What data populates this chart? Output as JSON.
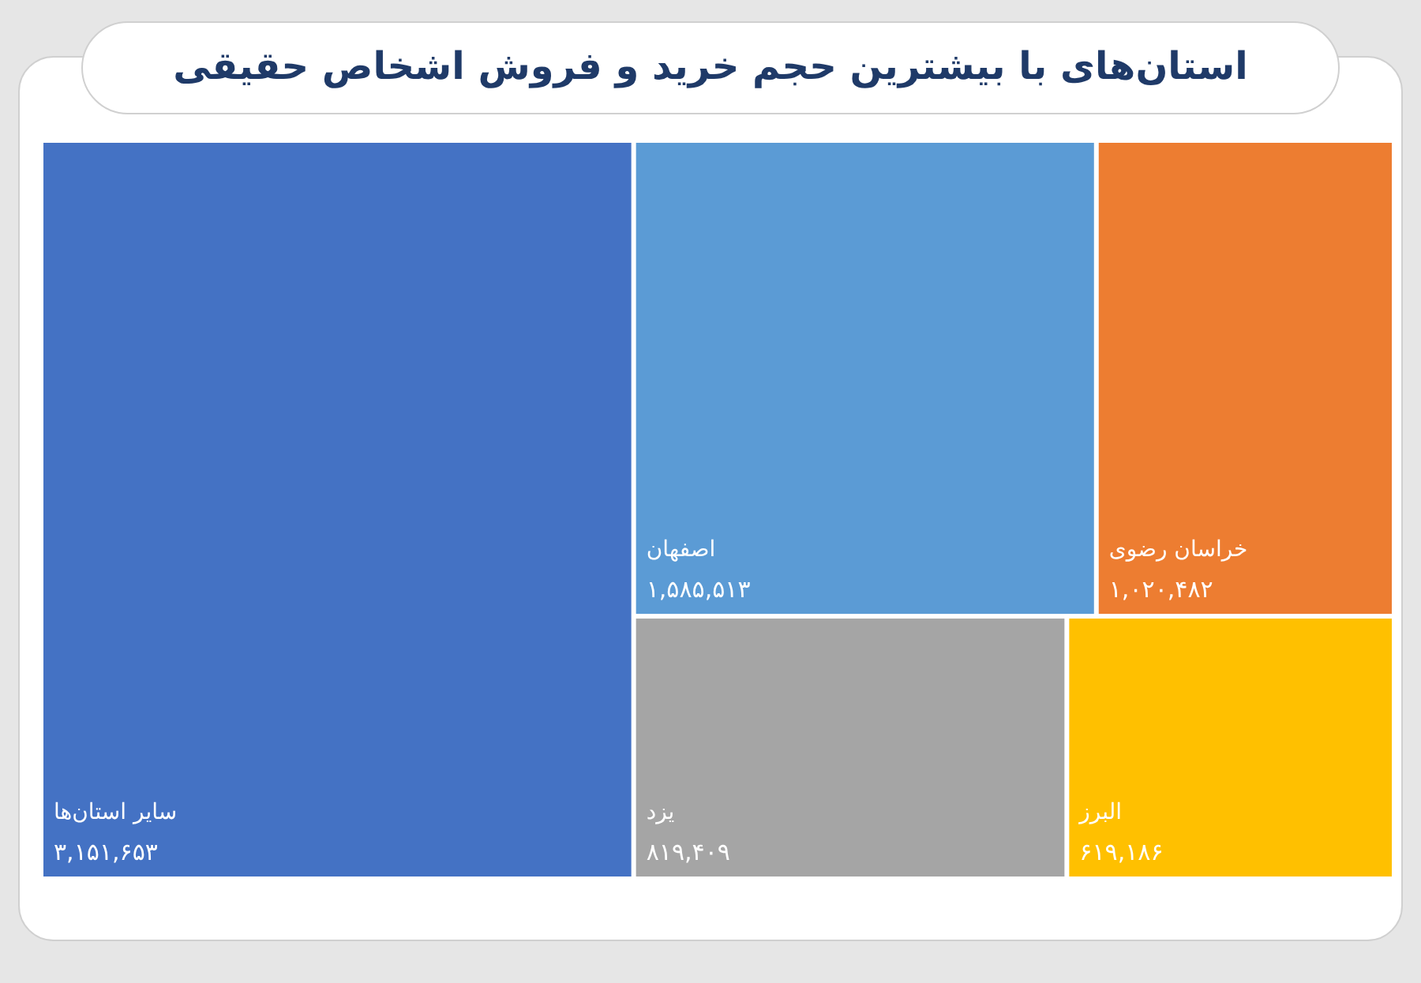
{
  "chart_data": {
    "type": "other",
    "title": "استان‌های با بیشترین حجم خرید و فروش اشخاص حقیقی",
    "categories": [
      "سایر استان‌ها",
      "اصفهان",
      "خراسان رضوی",
      "یزد",
      "البرز"
    ],
    "values": [
      3151653,
      1585513,
      1020482,
      819409,
      619186
    ],
    "value_labels": [
      "۳,۱۵۱,۶۵۳",
      "۱,۵۸۵,۵۱۳",
      "۱,۰۲۰,۴۸۲",
      "۸۱۹,۴۰۹",
      "۶۱۹,۱۸۶"
    ],
    "colors": [
      "#4472c4",
      "#5b9bd5",
      "#ed7d31",
      "#a5a5a5",
      "#ffc000"
    ]
  }
}
